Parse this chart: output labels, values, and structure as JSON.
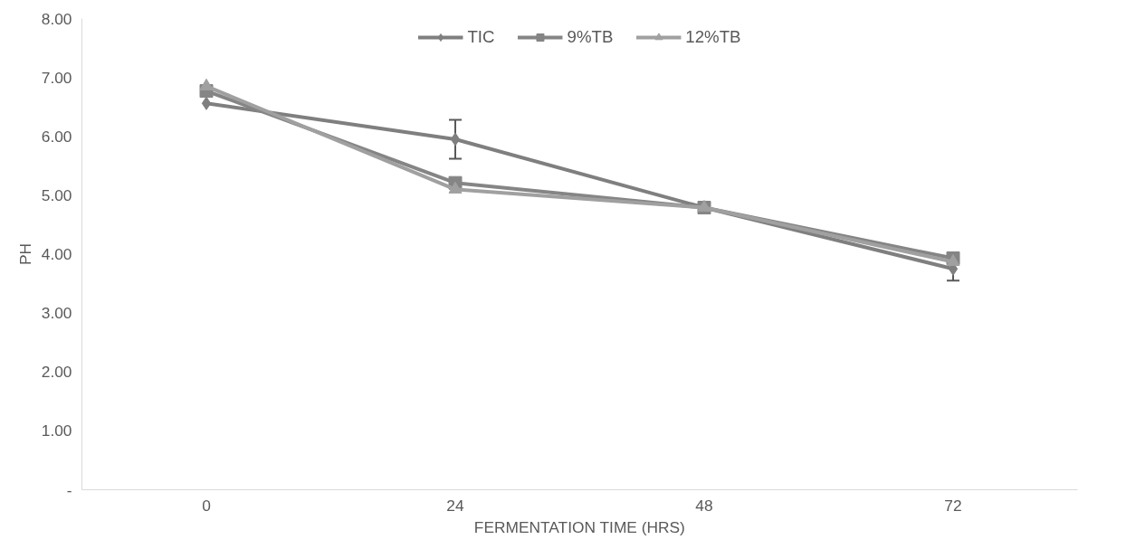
{
  "chart_data": {
    "type": "line",
    "xlabel": "FERMENTATION TIME (HRS)",
    "ylabel": "PH",
    "categories": [
      "0",
      "24",
      "48",
      "72"
    ],
    "series": [
      {
        "name": "TIC",
        "color": "#7f7f7f",
        "marker": "diamond",
        "values": [
          6.56,
          5.95,
          4.79,
          3.75
        ],
        "errors": [
          null,
          0.33,
          null,
          0.2
        ]
      },
      {
        "name": "9%TB",
        "color": "#858585",
        "marker": "square",
        "values": [
          6.77,
          5.21,
          4.79,
          3.93
        ]
      },
      {
        "name": "12%TB",
        "color": "#a0a0a0",
        "marker": "triangle",
        "values": [
          6.85,
          5.1,
          4.79,
          3.87
        ]
      }
    ],
    "ylim": [
      0,
      8
    ],
    "yticks": [
      {
        "value": 0,
        "label": "-"
      },
      {
        "value": 1,
        "label": "1.00"
      },
      {
        "value": 2,
        "label": "2.00"
      },
      {
        "value": 3,
        "label": "3.00"
      },
      {
        "value": 4,
        "label": "4.00"
      },
      {
        "value": 5,
        "label": "5.00"
      },
      {
        "value": 6,
        "label": "6.00"
      },
      {
        "value": 7,
        "label": "7.00"
      },
      {
        "value": 8,
        "label": "8.00"
      }
    ],
    "grid": false,
    "legend": "top",
    "line_style": "solid"
  }
}
